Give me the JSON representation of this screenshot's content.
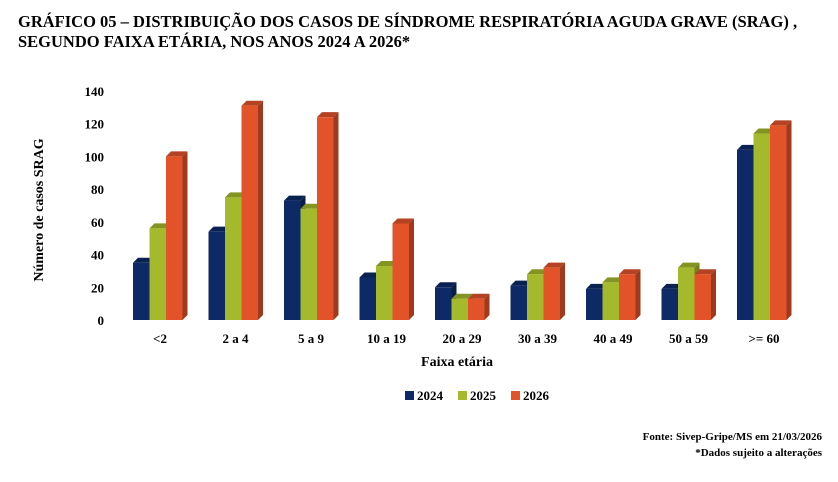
{
  "chart_data": {
    "type": "bar",
    "title": "GRÁFICO 05 – DISTRIBUIÇÃO DOS CASOS DE SÍNDROME RESPIRATÓRIA AGUDA GRAVE (SRAG) , SEGUNDO FAIXA ETÁRIA, NOS ANOS 2024 A 2026*",
    "xlabel": "Faixa etária",
    "ylabel": "Número de casos SRAG",
    "ylim": [
      0,
      140
    ],
    "yticks": [
      0,
      20,
      40,
      60,
      80,
      100,
      120,
      140
    ],
    "grid": false,
    "legend": "bottom",
    "categories": [
      "<2",
      "2 a 4",
      "5 a 9",
      "10 a 19",
      "20 a 29",
      "30 a 39",
      "40 a 49",
      "50 a 59",
      ">= 60"
    ],
    "series": [
      {
        "name": "2024",
        "color": "#0d2a66",
        "values": [
          35,
          54,
          73,
          26,
          20,
          21,
          19,
          19,
          104
        ]
      },
      {
        "name": "2025",
        "color": "#a4b92c",
        "values": [
          56,
          75,
          68,
          33,
          13,
          28,
          23,
          32,
          114
        ]
      },
      {
        "name": "2026",
        "color": "#e2532a",
        "values": [
          100,
          131,
          124,
          59,
          13,
          32,
          28,
          28,
          119
        ]
      }
    ]
  },
  "footer": {
    "source": "Fonte: Sivep-Gripe/MS em 21/03/2026",
    "note": "*Dados sujeito a alterações"
  }
}
